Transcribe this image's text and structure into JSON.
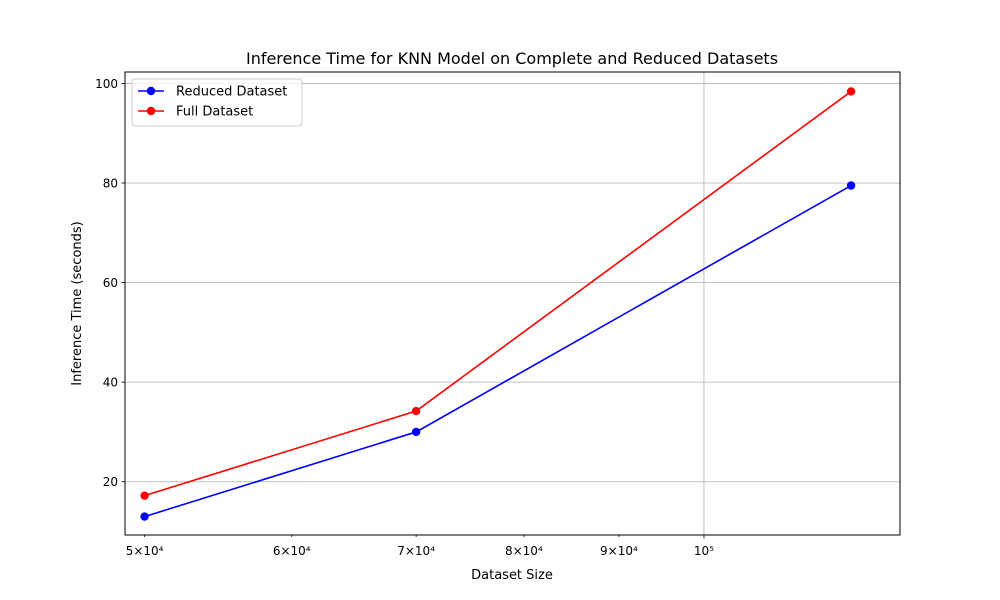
{
  "chart_data": {
    "type": "line",
    "title": "Inference Time for KNN Model on Complete and Reduced Datasets",
    "xlabel": "Dataset Size",
    "ylabel": "Inference Time (seconds)",
    "x_scale": "log",
    "x": [
      50000,
      70000,
      120000
    ],
    "xlim": [
      48800,
      127500
    ],
    "ylim": [
      9.3,
      102.3
    ],
    "x_ticks": [
      {
        "value": 50000,
        "label": "5×10⁴",
        "major": false
      },
      {
        "value": 60000,
        "label": "6×10⁴",
        "major": false
      },
      {
        "value": 70000,
        "label": "7×10⁴",
        "major": false
      },
      {
        "value": 80000,
        "label": "8×10⁴",
        "major": false
      },
      {
        "value": 90000,
        "label": "9×10⁴",
        "major": false
      },
      {
        "value": 100000,
        "label": "10⁵",
        "major": true
      }
    ],
    "y_ticks": [
      20,
      40,
      60,
      80,
      100
    ],
    "grid": true,
    "legend_position": "top-left",
    "series": [
      {
        "name": "Reduced Dataset",
        "color": "#0000ff",
        "values": [
          13.0,
          30.0,
          79.5
        ]
      },
      {
        "name": "Full Dataset",
        "color": "#ff0000",
        "values": [
          17.2,
          34.2,
          98.4
        ]
      }
    ]
  }
}
